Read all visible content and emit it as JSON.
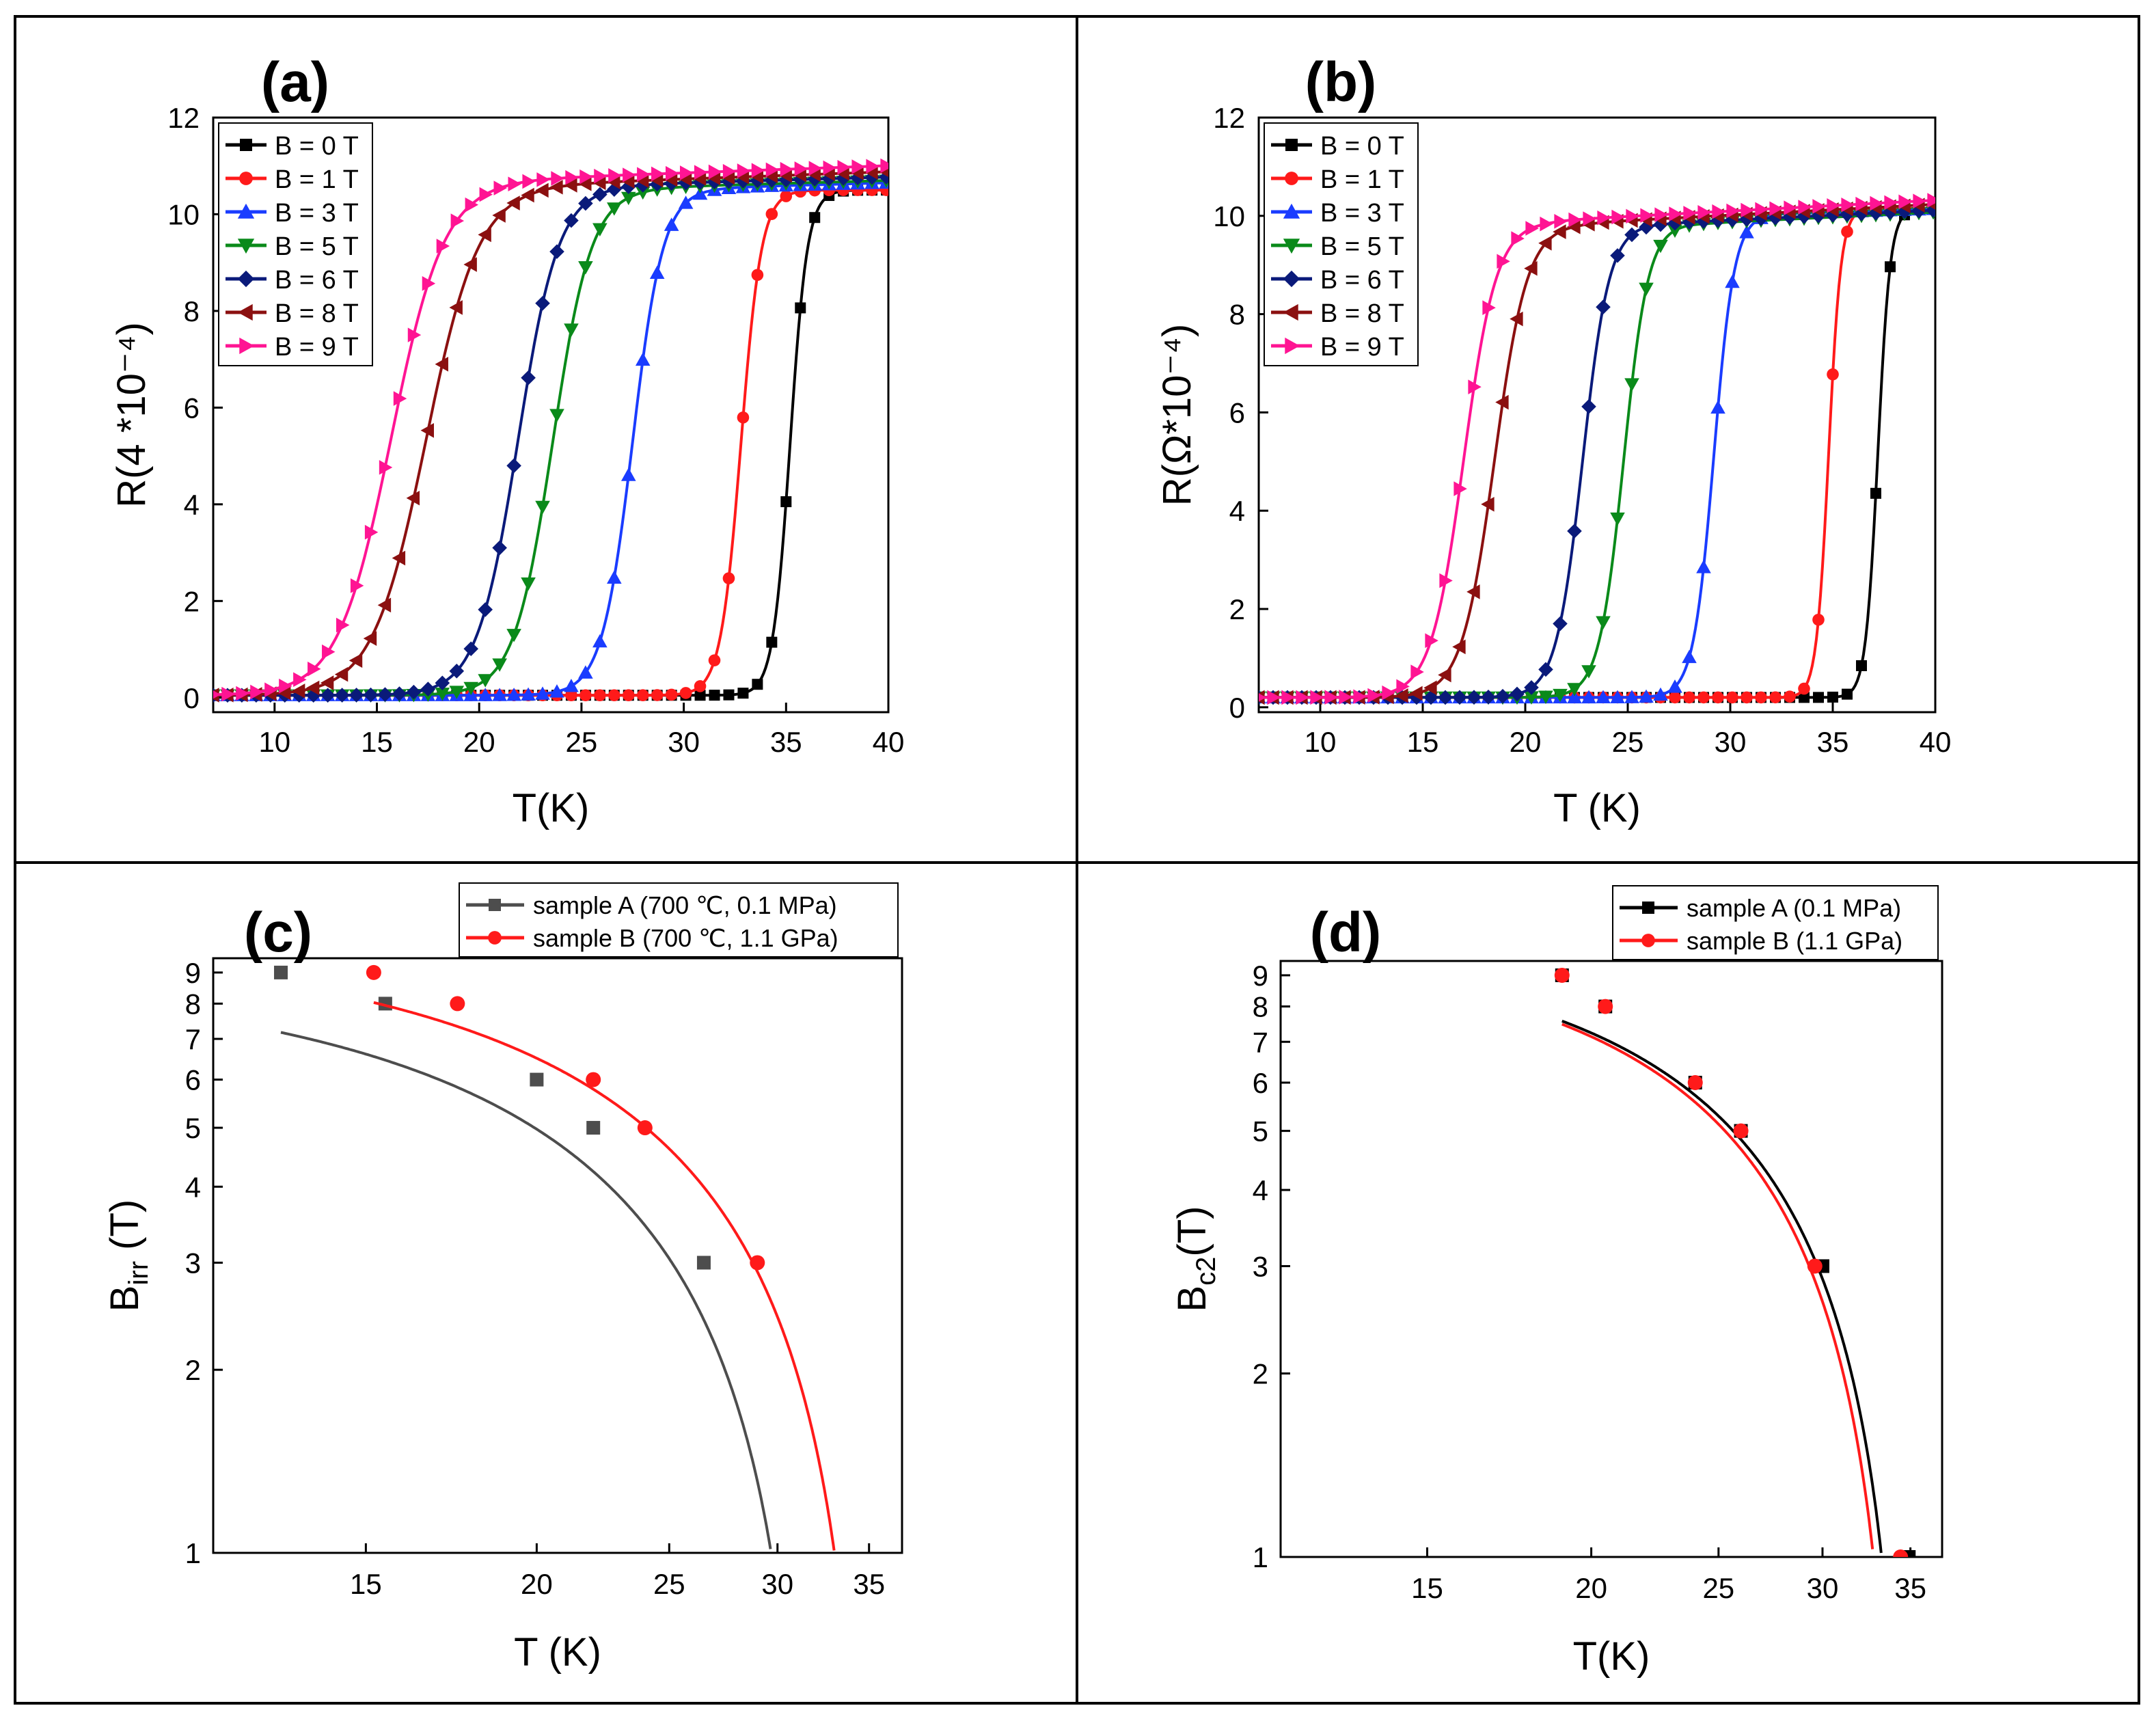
{
  "colors": {
    "black": "#000000",
    "red": "#ff1a1a",
    "blue": "#1a3cff",
    "green": "#0a8a1a",
    "navy": "#0a1a7a",
    "maroon": "#8b1010",
    "pink": "#ff1493",
    "gray": "#4d4d4d"
  },
  "chart_data": [
    {
      "panel_label": "(a)",
      "type": "line",
      "xlabel": "T(K)",
      "ylabel": "R(4 *10⁻⁴)",
      "xlim": [
        7,
        40
      ],
      "ylim": [
        -0.3,
        12
      ],
      "xticks": [
        10,
        15,
        20,
        25,
        30,
        35,
        40
      ],
      "yticks": [
        0,
        2,
        4,
        6,
        8,
        10,
        12
      ],
      "legend_position": "top-left",
      "series": [
        {
          "name": "B = 0 T",
          "color": "black",
          "marker": "square",
          "tc": 35.2,
          "w": 0.42,
          "base": 0.05,
          "top": 10.5,
          "slope": 0.0
        },
        {
          "name": "B = 1 T",
          "color": "red",
          "marker": "circle",
          "tc": 32.8,
          "w": 0.5,
          "base": 0.05,
          "top": 10.5,
          "slope": 0.0
        },
        {
          "name": "B = 3 T",
          "color": "blue",
          "marker": "triangle-up",
          "tc": 27.5,
          "w": 0.75,
          "base": 0.05,
          "top": 10.55,
          "slope": 0.012
        },
        {
          "name": "B = 5 T",
          "color": "green",
          "marker": "triangle-down",
          "tc": 23.6,
          "w": 0.95,
          "base": 0.05,
          "top": 10.55,
          "slope": 0.012
        },
        {
          "name": "B = 6 T",
          "color": "navy",
          "marker": "diamond",
          "tc": 21.9,
          "w": 1.0,
          "base": 0.05,
          "top": 10.6,
          "slope": 0.012
        },
        {
          "name": "B = 8 T",
          "color": "maroon",
          "marker": "triangle-left",
          "tc": 17.4,
          "w": 1.3,
          "base": 0.05,
          "top": 10.6,
          "slope": 0.015
        },
        {
          "name": "B = 9 T",
          "color": "pink",
          "marker": "triangle-right",
          "tc": 15.7,
          "w": 1.3,
          "base": 0.05,
          "top": 10.7,
          "slope": 0.015
        }
      ]
    },
    {
      "panel_label": "(b)",
      "type": "line",
      "xlabel": "T (K)",
      "ylabel": "R(Ω*10⁻⁴)",
      "xlim": [
        7,
        40
      ],
      "ylim": [
        -0.1,
        12
      ],
      "xticks": [
        10,
        15,
        20,
        25,
        30,
        35,
        40
      ],
      "yticks": [
        0,
        2,
        4,
        6,
        8,
        10,
        12
      ],
      "legend_position": "top-left",
      "series": [
        {
          "name": "B = 0 T",
          "color": "black",
          "marker": "square",
          "tc": 37.2,
          "w": 0.3,
          "base": 0.2,
          "top": 10.15,
          "slope": 0.0
        },
        {
          "name": "B = 1 T",
          "color": "red",
          "marker": "circle",
          "tc": 34.8,
          "w": 0.3,
          "base": 0.2,
          "top": 10.15,
          "slope": 0.0
        },
        {
          "name": "B = 3 T",
          "color": "blue",
          "marker": "triangle-up",
          "tc": 29.2,
          "w": 0.5,
          "base": 0.2,
          "top": 10.05,
          "slope": 0.013
        },
        {
          "name": "B = 5 T",
          "color": "green",
          "marker": "triangle-down",
          "tc": 24.8,
          "w": 0.6,
          "base": 0.2,
          "top": 9.85,
          "slope": 0.02
        },
        {
          "name": "B = 6 T",
          "color": "navy",
          "marker": "diamond",
          "tc": 22.8,
          "w": 0.65,
          "base": 0.2,
          "top": 9.85,
          "slope": 0.02
        },
        {
          "name": "B = 8 T",
          "color": "maroon",
          "marker": "triangle-left",
          "tc": 18.5,
          "w": 0.8,
          "base": 0.2,
          "top": 9.85,
          "slope": 0.022
        },
        {
          "name": "B = 9 T",
          "color": "pink",
          "marker": "triangle-right",
          "tc": 17.0,
          "w": 0.8,
          "base": 0.2,
          "top": 9.9,
          "slope": 0.022
        }
      ]
    },
    {
      "panel_label": "(c)",
      "type": "scatter",
      "xlabel": "T (K)",
      "ylabel": "B",
      "ylabel_sub": "irr",
      "ylabel_suffix": " (T)",
      "xscale": "log",
      "yscale": "log",
      "xlim": [
        11.6,
        37
      ],
      "ylim": [
        1,
        9.5
      ],
      "xticks": [
        15,
        20,
        25,
        30,
        35
      ],
      "yticks": [
        1,
        2,
        3,
        4,
        5,
        6,
        7,
        8,
        9
      ],
      "legend_position": "top-right",
      "series": [
        {
          "name": "sample A (700 ℃, 0.1 MPa)",
          "color": "gray",
          "marker": "square",
          "x": [
            13.0,
            15.5,
            20.0,
            22.0,
            26.5
          ],
          "y": [
            9,
            8,
            6,
            5,
            3
          ],
          "fit": {
            "Bc0": 9.3,
            "Tc": 31.8,
            "n": 1.65,
            "t_start": 13.0
          }
        },
        {
          "name": "sample B (700 ℃, 1.1 GPa)",
          "color": "red",
          "marker": "circle",
          "x": [
            15.2,
            17.5,
            22.0,
            24.0,
            29.0
          ],
          "y": [
            9,
            8,
            6,
            5,
            3
          ],
          "fit": {
            "Bc0": 10.6,
            "Tc": 35.0,
            "n": 1.7,
            "t_start": 15.2
          }
        }
      ]
    },
    {
      "panel_label": "(d)",
      "type": "scatter",
      "xlabel": "T(K)",
      "ylabel": "B",
      "ylabel_sub": "c2",
      "ylabel_suffix": "(T)",
      "xscale": "log",
      "yscale": "log",
      "xlim": [
        11.6,
        37
      ],
      "ylim": [
        1,
        9.5
      ],
      "xticks": [
        15,
        20,
        25,
        30,
        35
      ],
      "yticks": [
        1,
        2,
        3,
        4,
        5,
        6,
        7,
        8,
        9
      ],
      "legend_position": "top-right",
      "series": [
        {
          "name": "sample A (0.1 MPa)",
          "color": "black",
          "marker": "square",
          "x": [
            19.0,
            20.5,
            24.0,
            26.0,
            30.0,
            34.9
          ],
          "y": [
            9,
            8,
            6,
            5,
            3,
            1
          ],
          "fit": {
            "Bc0": 10.5,
            "Tc": 34.9,
            "n": 2.1,
            "t_start": 19.0
          }
        },
        {
          "name": "sample B (1.1 GPa)",
          "color": "red",
          "marker": "circle",
          "x": [
            19.0,
            20.5,
            24.0,
            26.0,
            29.6,
            34.4
          ],
          "y": [
            9,
            8,
            6,
            5,
            3,
            1
          ],
          "fit": {
            "Bc0": 10.5,
            "Tc": 34.4,
            "n": 2.1,
            "t_start": 19.0
          }
        }
      ]
    }
  ]
}
